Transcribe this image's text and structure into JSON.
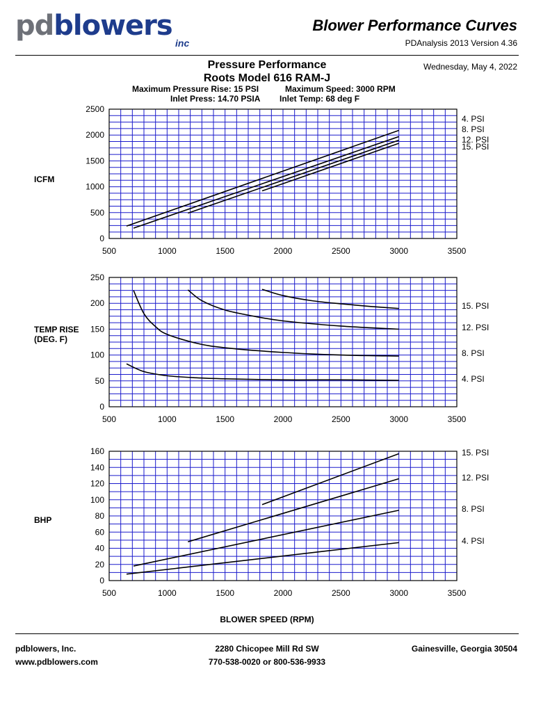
{
  "header": {
    "logo_prefix": "pd",
    "logo_blue": "bl",
    "logo_swirl": "o",
    "logo_suffix": "wers",
    "logo_inc": "inc",
    "title": "Blower Performance Curves",
    "version": "PDAnalysis 2013 Version 4.36",
    "date": "Wednesday, May 4, 2022"
  },
  "subtitle": {
    "line1": "Pressure Performance",
    "line2": "Roots Model 616 RAM-J",
    "spec1": "Maximum Pressure Rise: 15 PSI",
    "spec2": "Maximum Speed: 3000 RPM",
    "spec3": "Inlet Press: 14.70 PSIA",
    "spec4": "Inlet Temp: 68 deg F"
  },
  "colors": {
    "grid": "#1a1acc",
    "line": "#000000",
    "logo_gray": "#6e7178",
    "logo_blue": "#1e3c8c"
  },
  "chart_data": [
    {
      "type": "line",
      "ylabel": "ICFM",
      "xlim": [
        500,
        3500
      ],
      "ylim": [
        0,
        2500
      ],
      "xticks": [
        "500",
        "1000",
        "1500",
        "2000",
        "2500",
        "3000",
        "3500"
      ],
      "yticks": [
        "0",
        "500",
        "1000",
        "1500",
        "2000",
        "2500"
      ],
      "grid": true,
      "legend": "right, at line ends",
      "series": [
        {
          "name": "4. PSI",
          "x": [
            650,
            3000
          ],
          "y": [
            240,
            2090
          ]
        },
        {
          "name": "8. PSI",
          "x": [
            710,
            3000
          ],
          "y": [
            200,
            1970
          ]
        },
        {
          "name": "12. PSI",
          "x": [
            1180,
            3000
          ],
          "y": [
            490,
            1900
          ]
        },
        {
          "name": "15. PSI",
          "x": [
            1820,
            3000
          ],
          "y": [
            920,
            1840
          ]
        }
      ]
    },
    {
      "type": "line",
      "ylabel": "TEMP RISE\n(DEG. F)",
      "xlim": [
        500,
        3500
      ],
      "ylim": [
        0,
        250
      ],
      "xticks": [
        "500",
        "1000",
        "1500",
        "2000",
        "2500",
        "3000",
        "3500"
      ],
      "yticks": [
        "0",
        "50",
        "100",
        "150",
        "200",
        "250"
      ],
      "grid": true,
      "legend": "right, at line ends",
      "series": [
        {
          "name": "4. PSI",
          "x": [
            650,
            800,
            1000,
            1250,
            1500,
            2000,
            2500,
            3000
          ],
          "y": [
            83,
            68,
            60,
            56,
            54,
            52,
            52,
            51
          ]
        },
        {
          "name": "8. PSI",
          "x": [
            710,
            800,
            900,
            1000,
            1250,
            1500,
            2000,
            2500,
            3000
          ],
          "y": [
            225,
            180,
            155,
            140,
            123,
            114,
            105,
            100,
            98
          ]
        },
        {
          "name": "12. PSI",
          "x": [
            1180,
            1300,
            1500,
            1750,
            2000,
            2500,
            3000
          ],
          "y": [
            226,
            205,
            187,
            175,
            166,
            156,
            150
          ]
        },
        {
          "name": "15. PSI",
          "x": [
            1820,
            2000,
            2250,
            2500,
            2750,
            3000
          ],
          "y": [
            227,
            215,
            205,
            199,
            194,
            190
          ]
        }
      ]
    },
    {
      "type": "line",
      "ylabel": "BHP",
      "xlabel": "BLOWER SPEED (RPM)",
      "xlim": [
        500,
        3500
      ],
      "ylim": [
        0,
        160
      ],
      "xticks": [
        "500",
        "1000",
        "1500",
        "2000",
        "2500",
        "3000",
        "3500"
      ],
      "yticks": [
        "0",
        "20",
        "40",
        "60",
        "80",
        "100",
        "120",
        "140",
        "160"
      ],
      "grid": true,
      "legend": "right",
      "series": [
        {
          "name": "15. PSI",
          "x": [
            1820,
            3000
          ],
          "y": [
            94,
            157
          ]
        },
        {
          "name": "12. PSI",
          "x": [
            1180,
            3000
          ],
          "y": [
            48,
            126
          ]
        },
        {
          "name": "8. PSI",
          "x": [
            710,
            3000
          ],
          "y": [
            18,
            87
          ]
        },
        {
          "name": "4. PSI",
          "x": [
            650,
            3000
          ],
          "y": [
            8,
            47
          ]
        }
      ]
    }
  ],
  "footer": {
    "company": "pdblowers, Inc.",
    "website": "www.pdblowers.com",
    "address": "2280 Chicopee Mill Rd SW",
    "phone": "770-538-0020 or 800-536-9933",
    "city": "Gainesville, Georgia 30504"
  }
}
